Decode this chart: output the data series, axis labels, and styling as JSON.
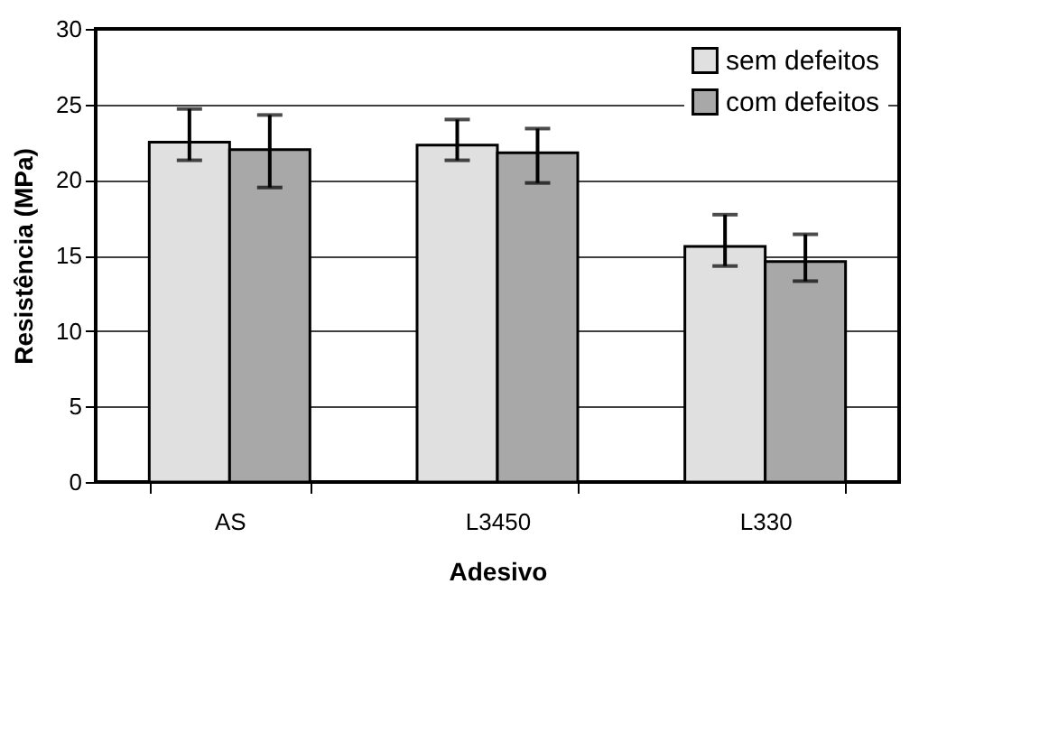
{
  "chart_data": {
    "type": "bar",
    "xlabel": "Adesivo",
    "ylabel": "Resistência (MPa)",
    "categories": [
      "AS",
      "L3450",
      "L330"
    ],
    "series": [
      {
        "name": "sem defeitos",
        "color": "#e0e0e0",
        "values": [
          22.5,
          22.3,
          15.6
        ],
        "errors": [
          [
            21.3,
            24.7
          ],
          [
            21.3,
            24.0
          ],
          [
            14.3,
            17.7
          ]
        ]
      },
      {
        "name": "com defeitos",
        "color": "#a8a8a8",
        "values": [
          22.0,
          21.8,
          14.6
        ],
        "errors": [
          [
            19.5,
            24.3
          ],
          [
            19.8,
            23.4
          ],
          [
            13.3,
            16.4
          ]
        ]
      }
    ],
    "ylim": [
      0,
      30
    ],
    "yticks": [
      0,
      5,
      10,
      15,
      20,
      25,
      30
    ],
    "grid": "y",
    "legend": "top right"
  }
}
